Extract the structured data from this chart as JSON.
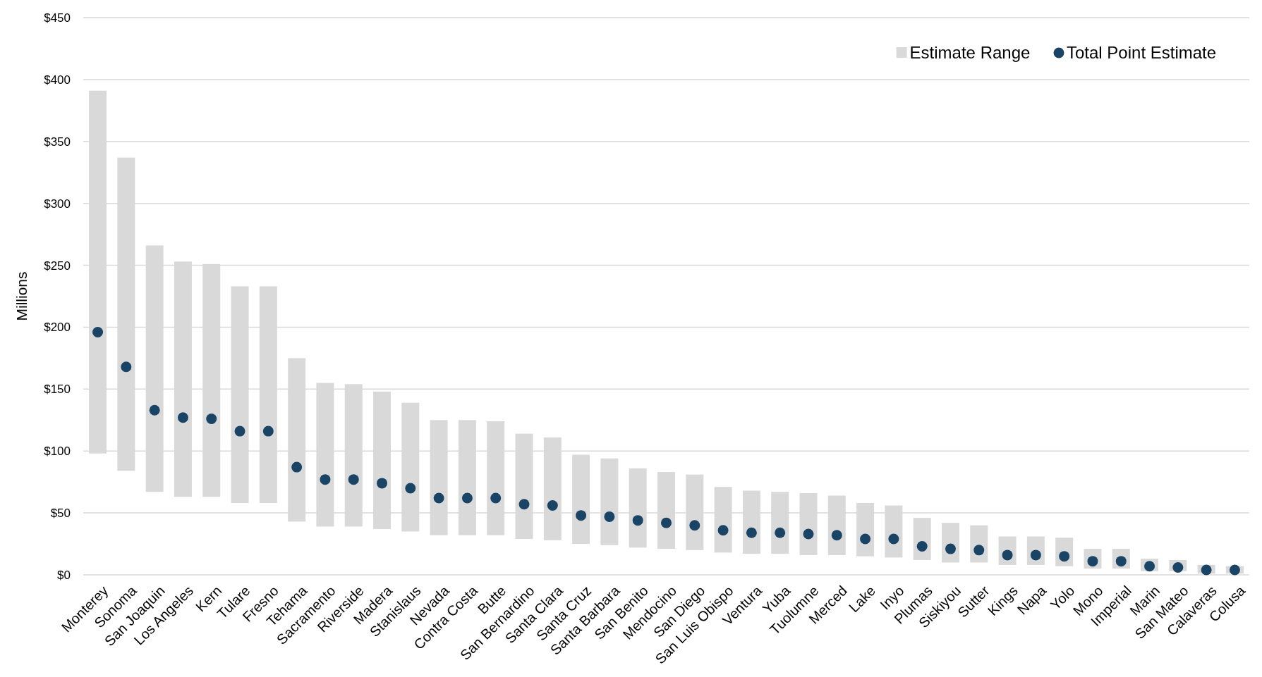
{
  "chart_data": {
    "type": "bar",
    "ylabel": "Millions",
    "categories": [
      "Monterey",
      "Sonoma",
      "San Joaquin",
      "Los Angeles",
      "Kern",
      "Tulare",
      "Fresno",
      "Tehama",
      "Sacramento",
      "Riverside",
      "Madera",
      "Stanislaus",
      "Nevada",
      "Contra Costa",
      "Butte",
      "San Bernardino",
      "Santa Clara",
      "Santa Cruz",
      "Santa Barbara",
      "San Benito",
      "Mendocino",
      "San Diego",
      "San Luis Obispo",
      "Ventura",
      "Yuba",
      "Tuolumne",
      "Merced",
      "Lake",
      "Inyo",
      "Plumas",
      "Siskiyou",
      "Sutter",
      "Kings",
      "Napa",
      "Yolo",
      "Mono",
      "Imperial",
      "Marin",
      "San Mateo",
      "Calaveras",
      "Colusa"
    ],
    "series": [
      {
        "name": "Estimate Range",
        "color": "#d9d9d9",
        "base": [
          98,
          84,
          67,
          63,
          63,
          58,
          58,
          43,
          39,
          39,
          37,
          35,
          32,
          32,
          32,
          29,
          28,
          25,
          24,
          22,
          21,
          20,
          18,
          17,
          17,
          16,
          16,
          15,
          14,
          12,
          10,
          10,
          8,
          8,
          7,
          5,
          5,
          3,
          3,
          1,
          1
        ],
        "values": [
          293,
          253,
          199,
          190,
          188,
          175,
          175,
          132,
          116,
          115,
          111,
          104,
          93,
          93,
          92,
          85,
          83,
          72,
          70,
          64,
          62,
          61,
          53,
          51,
          50,
          50,
          48,
          43,
          42,
          34,
          32,
          30,
          23,
          23,
          23,
          16,
          16,
          10,
          9,
          7,
          6
        ]
      },
      {
        "type": "scatter",
        "name": "Total Point Estimate",
        "color": "#1a4466",
        "x": [
          "Monterey",
          "Sonoma",
          "San Joaquin",
          "Los Angeles",
          "Kern",
          "Tulare",
          "Fresno",
          "Tehama",
          "Sacramento",
          "Riverside",
          "Madera",
          "Stanislaus",
          "Nevada",
          "Contra Costa",
          "Butte",
          "San Bernardino",
          "Santa Clara",
          "Santa Cruz",
          "Santa Barbara",
          "San Benito",
          "Mendocino",
          "San Diego",
          "San Luis Obispo",
          "Ventura",
          "Yuba",
          "Tuolumne",
          "Merced",
          "Lake",
          "Inyo",
          "Plumas",
          "Siskiyou",
          "Sutter",
          "Kings",
          "Napa",
          "Yolo",
          "Mono",
          "Imperial",
          "Marin",
          "San Mateo",
          "Calaveras",
          "Colusa"
        ],
        "values": [
          196,
          168,
          133,
          127,
          126,
          116,
          116,
          87,
          77,
          77,
          74,
          70,
          62,
          62,
          62,
          57,
          56,
          48,
          47,
          44,
          42,
          40,
          36,
          34,
          34,
          33,
          32,
          29,
          29,
          23,
          21,
          20,
          16,
          16,
          15,
          11,
          11,
          7,
          6,
          4,
          4
        ]
      }
    ],
    "ylim": [
      0,
      450
    ],
    "yticks": [
      {
        "value": 0,
        "label": "$0"
      },
      {
        "value": 50,
        "label": "$50"
      },
      {
        "value": 100,
        "label": "$100"
      },
      {
        "value": 150,
        "label": "$150"
      },
      {
        "value": 200,
        "label": "$200"
      },
      {
        "value": 250,
        "label": "$250"
      },
      {
        "value": 300,
        "label": "$300"
      },
      {
        "value": 350,
        "label": "$350"
      },
      {
        "value": 400,
        "label": "$400"
      },
      {
        "value": 450,
        "label": "$450"
      }
    ],
    "grid": "y",
    "legend": "top right",
    "marker": "circle"
  }
}
